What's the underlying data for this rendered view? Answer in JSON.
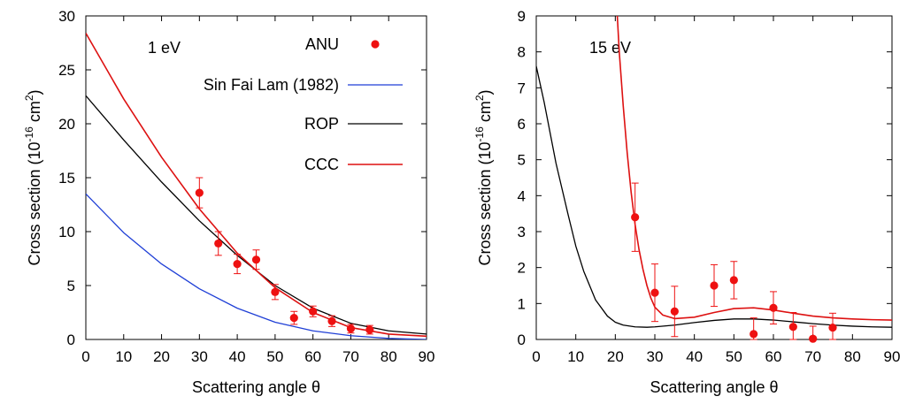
{
  "colors": {
    "anu": "#ee1111",
    "sinfailam": "#1f3fd6",
    "rop": "#000000",
    "ccc": "#dd1111"
  },
  "chart_data": [
    {
      "type": "line",
      "annotation": "1 eV",
      "xlabel": "Scattering angle θ",
      "ylabel_main": "Cross section (10",
      "ylabel_sup": "-16",
      "ylabel_unit": " cm",
      "ylabel_sup2": "2",
      "ylabel_end": ")",
      "xlim": [
        0,
        90
      ],
      "ylim": [
        0,
        30
      ],
      "xticks": [
        0,
        10,
        20,
        30,
        40,
        50,
        60,
        70,
        80,
        90
      ],
      "yticks": [
        0,
        5,
        10,
        15,
        20,
        25,
        30
      ],
      "legend": [
        {
          "key": "anu",
          "label": "ANU",
          "style": "point"
        },
        {
          "key": "sinfailam",
          "label": "Sin Fai Lam (1982)",
          "style": "line"
        },
        {
          "key": "rop",
          "label": "ROP",
          "style": "line"
        },
        {
          "key": "ccc",
          "label": "CCC",
          "style": "line"
        }
      ],
      "series": [
        {
          "key": "sinfailam",
          "name": "Sin Fai Lam (1982)",
          "x": [
            0,
            10,
            20,
            30,
            40,
            50,
            60,
            70,
            80,
            90
          ],
          "y": [
            13.5,
            9.9,
            7.0,
            4.7,
            2.9,
            1.6,
            0.8,
            0.35,
            0.1,
            0.0
          ]
        },
        {
          "key": "rop",
          "name": "ROP",
          "x": [
            0,
            10,
            20,
            30,
            40,
            50,
            60,
            70,
            80,
            90
          ],
          "y": [
            22.6,
            18.5,
            14.6,
            11.0,
            7.8,
            5.0,
            2.9,
            1.5,
            0.8,
            0.5
          ]
        },
        {
          "key": "ccc",
          "name": "CCC",
          "x": [
            0,
            10,
            20,
            30,
            40,
            50,
            60,
            70,
            80,
            90
          ],
          "y": [
            28.4,
            22.3,
            16.9,
            12.1,
            8.0,
            4.8,
            2.5,
            1.1,
            0.5,
            0.3
          ]
        }
      ],
      "points": {
        "key": "anu",
        "name": "ANU",
        "x": [
          30,
          35,
          40,
          45,
          50,
          55,
          60,
          65,
          70,
          75
        ],
        "y": [
          13.6,
          8.9,
          7.0,
          7.4,
          4.4,
          2.0,
          2.6,
          1.7,
          1.0,
          0.9
        ],
        "err": [
          1.4,
          1.1,
          0.9,
          0.9,
          0.7,
          0.6,
          0.5,
          0.5,
          0.4,
          0.4
        ]
      }
    },
    {
      "type": "line",
      "annotation": "15 eV",
      "xlabel": "Scattering angle θ",
      "ylabel_main": "Cross section (10",
      "ylabel_sup": "-16",
      "ylabel_unit": " cm",
      "ylabel_sup2": "2",
      "ylabel_end": ")",
      "xlim": [
        0,
        90
      ],
      "ylim": [
        0,
        9
      ],
      "xticks": [
        0,
        10,
        20,
        30,
        40,
        50,
        60,
        70,
        80,
        90
      ],
      "yticks": [
        0,
        1,
        2,
        3,
        4,
        5,
        6,
        7,
        8,
        9
      ],
      "series": [
        {
          "key": "rop",
          "name": "ROP",
          "x": [
            0,
            2,
            5,
            8,
            10,
            12,
            15,
            18,
            20,
            22,
            25,
            28,
            30,
            35,
            40,
            45,
            50,
            55,
            60,
            65,
            70,
            75,
            80,
            85,
            90
          ],
          "y": [
            7.6,
            6.6,
            4.9,
            3.5,
            2.6,
            1.9,
            1.1,
            0.65,
            0.48,
            0.4,
            0.35,
            0.34,
            0.35,
            0.4,
            0.47,
            0.53,
            0.57,
            0.57,
            0.54,
            0.49,
            0.44,
            0.4,
            0.37,
            0.35,
            0.34
          ]
        },
        {
          "key": "ccc",
          "name": "CCC",
          "x": [
            20.5,
            21,
            22,
            23,
            24,
            25,
            26,
            27,
            28,
            29,
            30,
            32,
            35,
            40,
            45,
            50,
            55,
            60,
            65,
            70,
            75,
            80,
            85,
            90
          ],
          "y": [
            9.0,
            8.0,
            6.5,
            5.2,
            4.1,
            3.2,
            2.5,
            1.95,
            1.5,
            1.15,
            0.9,
            0.68,
            0.58,
            0.62,
            0.75,
            0.86,
            0.88,
            0.82,
            0.73,
            0.65,
            0.6,
            0.57,
            0.55,
            0.54
          ]
        }
      ],
      "points": {
        "key": "anu",
        "name": "ANU",
        "x": [
          25,
          30,
          35,
          45,
          50,
          55,
          60,
          65,
          70,
          75
        ],
        "y": [
          3.4,
          1.3,
          0.78,
          1.5,
          1.65,
          0.15,
          0.88,
          0.35,
          0.02,
          0.33
        ],
        "err": [
          0.95,
          0.8,
          0.7,
          0.58,
          0.52,
          0.45,
          0.45,
          0.4,
          0.35,
          0.4
        ]
      }
    }
  ]
}
